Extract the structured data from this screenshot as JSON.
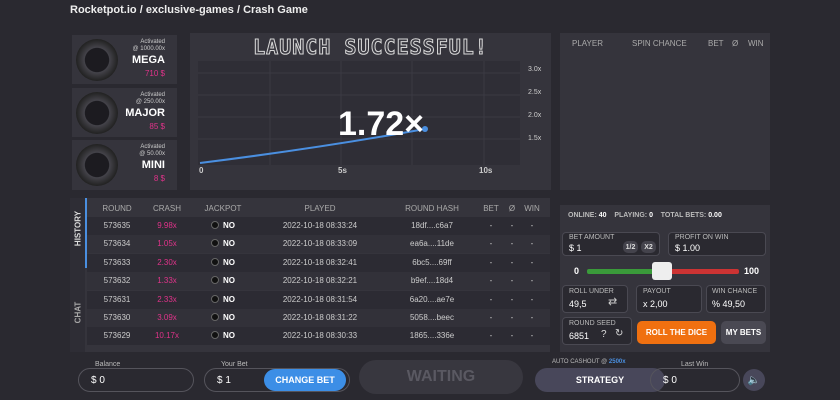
{
  "breadcrumb": {
    "items": [
      "Rocketpot.io",
      "exclusive-games",
      "Crash Game"
    ],
    "separator": "/"
  },
  "jackpots": [
    {
      "status": "Activated",
      "threshold": "@ 1000.00x",
      "name": "MEGA",
      "amount": "710 $"
    },
    {
      "status": "Activated",
      "threshold": "@ 250.00x",
      "name": "MAJOR",
      "amount": "85 $"
    },
    {
      "status": "Activated",
      "threshold": "@ 50.00x",
      "name": "MINI",
      "amount": "8 $"
    }
  ],
  "game": {
    "banner": "LAUNCH SUCCESSFUL!",
    "multiplier": "1.72×",
    "y_labels": [
      "3.0x",
      "2.5x",
      "2.0x",
      "1.5x"
    ],
    "x_labels": [
      "0",
      "5s",
      "10s"
    ]
  },
  "players": {
    "columns": [
      "PLAYER",
      "SPIN CHANCE",
      "BET",
      "Ø",
      "WIN"
    ]
  },
  "history": {
    "tabs": [
      "HISTORY",
      "CHAT"
    ],
    "columns": [
      "ROUND",
      "CRASH",
      "JACKPOT",
      "PLAYED",
      "ROUND HASH",
      "BET",
      "Ø",
      "WIN"
    ],
    "rows": [
      [
        "573635",
        "9.98x",
        "NO",
        "2022-10-18 08:33:24",
        "18df....c6a7",
        "-",
        "-",
        "-"
      ],
      [
        "573634",
        "1.05x",
        "NO",
        "2022-10-18 08:33:09",
        "ea6a....11de",
        "-",
        "-",
        "-"
      ],
      [
        "573633",
        "2.30x",
        "NO",
        "2022-10-18 08:32:41",
        "6bc5....69ff",
        "-",
        "-",
        "-"
      ],
      [
        "573632",
        "1.33x",
        "NO",
        "2022-10-18 08:32:21",
        "b9ef....18d4",
        "-",
        "-",
        "-"
      ],
      [
        "573631",
        "2.33x",
        "NO",
        "2022-10-18 08:31:54",
        "6a20....ae7e",
        "-",
        "-",
        "-"
      ],
      [
        "573630",
        "3.09x",
        "NO",
        "2022-10-18 08:31:22",
        "5058....beec",
        "-",
        "-",
        "-"
      ],
      [
        "573629",
        "10.17x",
        "NO",
        "2022-10-18 08:30:33",
        "1865....336e",
        "-",
        "-",
        "-"
      ]
    ]
  },
  "dice": {
    "online_label": "ONLINE:",
    "online": "40",
    "playing_label": "PLAYING:",
    "playing": "0",
    "total_label": "TOTAL BETS:",
    "total": "0.00",
    "bet_label": "BET AMOUNT",
    "bet": "$ 1",
    "half": "1/2",
    "double": "X2",
    "profit_label": "PROFIT ON WIN",
    "profit": "$ 1.00",
    "slider_min": "0",
    "slider_max": "100",
    "roll_label": "ROLL UNDER",
    "roll": "49,5",
    "payout_label": "PAYOUT",
    "payout": "x 2,00",
    "chance_label": "WIN CHANCE",
    "chance": "% 49,50",
    "seed_label": "ROUND SEED",
    "seed": "6851",
    "help": "?",
    "roll_button": "ROLL THE DICE",
    "my_bets": "MY BETS"
  },
  "footer": {
    "balance_label": "Balance",
    "balance": "$ 0",
    "bet_label": "Your Bet",
    "bet": "$ 1",
    "change_bet": "CHANGE BET",
    "waiting": "WAITING",
    "auto_label": "AUTO CASHOUT @",
    "auto_value": "2500x",
    "strategy": "STRATEGY",
    "last_win_label": "Last Win",
    "last_win": "$ 0"
  }
}
